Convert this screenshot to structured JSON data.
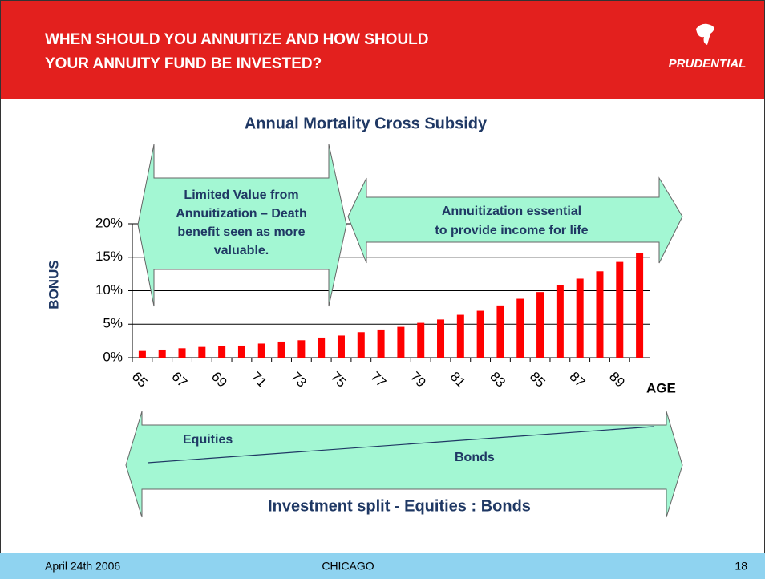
{
  "header": {
    "title_lines": [
      "WHEN SHOULD YOU ANNUITIZE AND HOW SHOULD",
      "YOUR ANNUITY  FUND BE INVESTED?"
    ],
    "logo": "PRUDENTIAL"
  },
  "chart_data": {
    "type": "bar",
    "title": "Annual Mortality Cross Subsidy",
    "categories": [
      65,
      null,
      67,
      null,
      69,
      null,
      71,
      null,
      73,
      null,
      75,
      null,
      77,
      null,
      79,
      null,
      81,
      null,
      83,
      null,
      85,
      null,
      87,
      null,
      89,
      null
    ],
    "values": [
      1.0,
      1.2,
      1.4,
      1.6,
      1.7,
      1.8,
      2.1,
      2.4,
      2.6,
      3.0,
      3.3,
      3.8,
      4.2,
      4.6,
      5.2,
      5.7,
      6.4,
      7.0,
      7.8,
      8.8,
      9.8,
      10.8,
      11.8,
      12.9,
      14.3,
      15.6
    ],
    "color": "#ff0000",
    "ylim": [
      0,
      20
    ],
    "yticks": [
      {
        "value": 0,
        "label": "0%"
      },
      {
        "value": 5,
        "label": "5%"
      },
      {
        "value": 10,
        "label": "10%"
      },
      {
        "value": 15,
        "label": "15%"
      },
      {
        "value": 20,
        "label": "20%"
      }
    ],
    "grid": true,
    "ylabel": "BONUS",
    "xlabel": "AGE",
    "annotations": [
      [
        "Limited Value from",
        "Annuitization – Death",
        "benefit seen as more",
        "valuable."
      ],
      [
        "Annuitization essential",
        "to provide income for life"
      ]
    ]
  },
  "investment": {
    "title": "Investment split - Equities : Bonds",
    "top": "Equities",
    "bottom": "Bonds"
  },
  "footer": {
    "date": "April 24th 2006",
    "place": "CHICAGO",
    "page": "18"
  }
}
